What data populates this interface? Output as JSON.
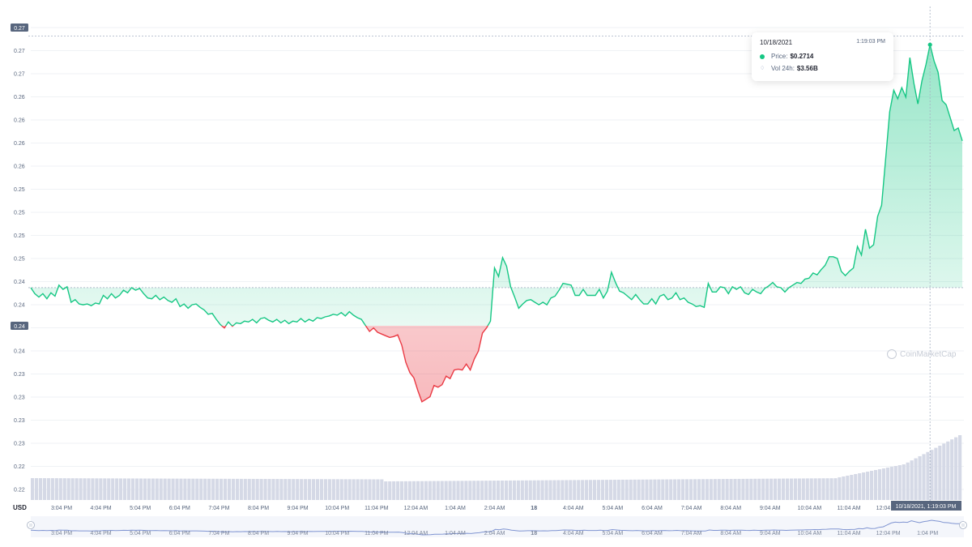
{
  "chart_data": {
    "type": "area",
    "currency_label": "USD",
    "y_tick_labels": [
      "0.22",
      "0.22",
      "0.23",
      "0.23",
      "0.23",
      "0.23",
      "0.24",
      "0.24",
      "0.24",
      "0.24",
      "0.25",
      "0.25",
      "0.25",
      "0.25",
      "0.26",
      "0.26",
      "0.26",
      "0.26",
      "0.27",
      "0.27",
      "0.27"
    ],
    "x_tick_labels": [
      "3:04 PM",
      "4:04 PM",
      "5:04 PM",
      "6:04 PM",
      "7:04 PM",
      "8:04 PM",
      "9:04 PM",
      "10:04 PM",
      "11:04 PM",
      "12:04 AM",
      "1:04 AM",
      "2:04 AM",
      "18",
      "4:04 AM",
      "5:04 AM",
      "6:04 AM",
      "7:04 AM",
      "8:04 AM",
      "9:04 AM",
      "10:04 AM",
      "11:04 AM",
      "12:04 PM"
    ],
    "nav_tick_labels": [
      "3:04 PM",
      "4:04 PM",
      "5:04 PM",
      "6:04 PM",
      "7:04 PM",
      "8:04 PM",
      "9:04 PM",
      "10:04 PM",
      "11:04 PM",
      "12:04 AM",
      "1:04 AM",
      "2:04 AM",
      "18",
      "4:04 AM",
      "5:04 AM",
      "6:04 AM",
      "7:04 AM",
      "8:04 AM",
      "9:04 AM",
      "10:04 AM",
      "11:04 AM",
      "12:04 PM",
      "1:04 PM"
    ],
    "y_range": [
      0.2195,
      0.2735
    ],
    "open_price_label": "0.24",
    "open_price": 0.2432,
    "high_price_label": "0.27",
    "high_price": 0.2725,
    "colors": {
      "up": "#16c784",
      "down": "#ea3943",
      "volume": "#d5d9e6",
      "grid": "#eff2f5"
    },
    "price_series": [
      0.2432,
      0.2425,
      0.2421,
      0.2425,
      0.2419,
      0.2426,
      0.2422,
      0.2435,
      0.243,
      0.2433,
      0.2415,
      0.2418,
      0.2413,
      0.2412,
      0.2413,
      0.2411,
      0.2414,
      0.2413,
      0.2423,
      0.2419,
      0.2425,
      0.242,
      0.2423,
      0.2429,
      0.2426,
      0.2432,
      0.2429,
      0.2431,
      0.2425,
      0.242,
      0.2419,
      0.2423,
      0.2418,
      0.2421,
      0.2417,
      0.2415,
      0.2419,
      0.241,
      0.2413,
      0.2408,
      0.2412,
      0.2413,
      0.2409,
      0.2406,
      0.2401,
      0.2402,
      0.2395,
      0.2389,
      0.2385,
      0.2392,
      0.2387,
      0.2391,
      0.239,
      0.2393,
      0.2392,
      0.2395,
      0.2391,
      0.2396,
      0.2397,
      0.2394,
      0.2392,
      0.2395,
      0.2391,
      0.2394,
      0.239,
      0.2393,
      0.2392,
      0.2396,
      0.2392,
      0.2395,
      0.2393,
      0.2397,
      0.2396,
      0.2398,
      0.2399,
      0.2401,
      0.24,
      0.2403,
      0.2399,
      0.2404,
      0.24,
      0.2397,
      0.2395,
      0.2388,
      0.2381,
      0.2385,
      0.238,
      0.2378,
      0.2376,
      0.2374,
      0.2375,
      0.2377,
      0.2365,
      0.2345,
      0.2333,
      0.2327,
      0.2312,
      0.2299,
      0.2302,
      0.2305,
      0.2318,
      0.2316,
      0.2319,
      0.2329,
      0.2326,
      0.2336,
      0.2337,
      0.2336,
      0.2343,
      0.2336,
      0.2349,
      0.2358,
      0.2379,
      0.2385,
      0.2393,
      0.2455,
      0.2445,
      0.2467,
      0.2457,
      0.2433,
      0.2421,
      0.2408,
      0.2413,
      0.2417,
      0.2418,
      0.2415,
      0.2412,
      0.2415,
      0.2412,
      0.242,
      0.2422,
      0.2429,
      0.2437,
      0.2436,
      0.2435,
      0.2423,
      0.2423,
      0.243,
      0.2423,
      0.2423,
      0.2423,
      0.243,
      0.242,
      0.2428,
      0.245,
      0.2438,
      0.2428,
      0.2426,
      0.2422,
      0.2418,
      0.2424,
      0.2418,
      0.2413,
      0.2413,
      0.2419,
      0.2413,
      0.2422,
      0.2424,
      0.2418,
      0.242,
      0.2426,
      0.2418,
      0.242,
      0.2415,
      0.2413,
      0.241,
      0.2411,
      0.2409,
      0.2437,
      0.2427,
      0.2427,
      0.2433,
      0.2432,
      0.2425,
      0.2433,
      0.243,
      0.2433,
      0.2426,
      0.2424,
      0.243,
      0.2427,
      0.2425,
      0.2431,
      0.2434,
      0.2438,
      0.2433,
      0.2432,
      0.2427,
      0.2432,
      0.2435,
      0.2438,
      0.2437,
      0.2442,
      0.2443,
      0.2449,
      0.2447,
      0.2453,
      0.2458,
      0.2468,
      0.2468,
      0.2466,
      0.2451,
      0.2446,
      0.2451,
      0.2455,
      0.248,
      0.247,
      0.25,
      0.2478,
      0.2482,
      0.2515,
      0.2528,
      0.2582,
      0.2637,
      0.2662,
      0.2652,
      0.2665,
      0.2654,
      0.27,
      0.267,
      0.2646,
      0.2673,
      0.2692,
      0.2715,
      0.2696,
      0.2683,
      0.265,
      0.2645,
      0.263,
      0.2615,
      0.2618,
      0.2603
    ]
  },
  "tooltip": {
    "date": "10/18/2021",
    "time": "1:19:03 PM",
    "price_label": "Price:",
    "price_value": "$0.2714",
    "vol_label": "Vol 24h:",
    "vol_value": "$3.56B"
  },
  "crosshair_label": "10/18/2021, 1:19:03 PM",
  "watermark": "CoinMarketCap"
}
